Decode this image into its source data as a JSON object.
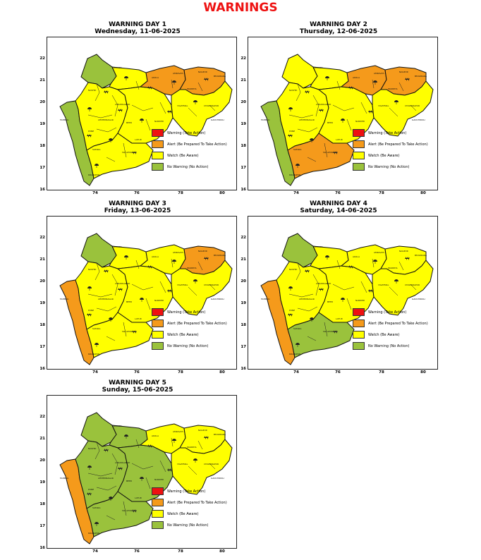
{
  "title": "WARNINGS",
  "colors": {
    "warning": "#ee1111",
    "alert": "#f59a1b",
    "watch": "#ffff00",
    "no_warning": "#9ac23c",
    "title_red": "#ee1111"
  },
  "legend": [
    {
      "label": "Warning (Take Action)",
      "color": "#ee1111"
    },
    {
      "label": "Alert (Be Prepared To Take Action)",
      "color": "#f59a1b"
    },
    {
      "label": "Watch (Be Aware)",
      "color": "#ffff00"
    },
    {
      "label": "No Warning (No Action)",
      "color": "#9ac23c"
    }
  ],
  "axes": {
    "x_ticks": [
      "74",
      "76",
      "78",
      "80"
    ],
    "y_ticks": [
      "22",
      "21",
      "20",
      "19",
      "18",
      "17",
      "16"
    ]
  },
  "icons": [
    "thunderstorm-lightning-icon",
    "heavy-rain-umbrella-icon"
  ],
  "panels": [
    {
      "day": "WARNING DAY 1",
      "date": "Wednesday, 11-06-2025",
      "regions": {
        "north_west": "no_warning",
        "north_khandesh": "watch",
        "konkan": "no_warning",
        "madhya": "watch",
        "marathwada": "watch",
        "south": "watch",
        "vidarbha_west": "alert",
        "vidarbha_east": "alert",
        "vidarbha_south": "watch"
      }
    },
    {
      "day": "WARNING DAY 2",
      "date": "Thursday, 12-06-2025",
      "regions": {
        "north_west": "watch",
        "north_khandesh": "watch",
        "konkan": "no_warning",
        "madhya": "watch",
        "marathwada": "watch",
        "south": "alert",
        "vidarbha_west": "alert",
        "vidarbha_east": "alert",
        "vidarbha_south": "watch"
      }
    },
    {
      "day": "WARNING DAY 3",
      "date": "Friday, 13-06-2025",
      "regions": {
        "north_west": "no_warning",
        "north_khandesh": "watch",
        "konkan": "alert",
        "madhya": "watch",
        "marathwada": "watch",
        "south": "watch",
        "vidarbha_west": "watch",
        "vidarbha_east": "alert",
        "vidarbha_south": "watch"
      }
    },
    {
      "day": "WARNING DAY 4",
      "date": "Saturday, 14-06-2025",
      "regions": {
        "north_west": "no_warning",
        "north_khandesh": "watch",
        "konkan": "alert",
        "madhya": "watch",
        "marathwada": "watch",
        "south": "no_warning",
        "vidarbha_west": "watch",
        "vidarbha_east": "watch",
        "vidarbha_south": "watch"
      }
    },
    {
      "day": "WARNING DAY 5",
      "date": "Sunday, 15-06-2025",
      "regions": {
        "north_west": "no_warning",
        "north_khandesh": "no_warning",
        "konkan": "alert",
        "madhya": "no_warning",
        "marathwada": "no_warning",
        "south": "no_warning",
        "vidarbha_west": "watch",
        "vidarbha_east": "watch",
        "vidarbha_south": "watch"
      }
    }
  ]
}
